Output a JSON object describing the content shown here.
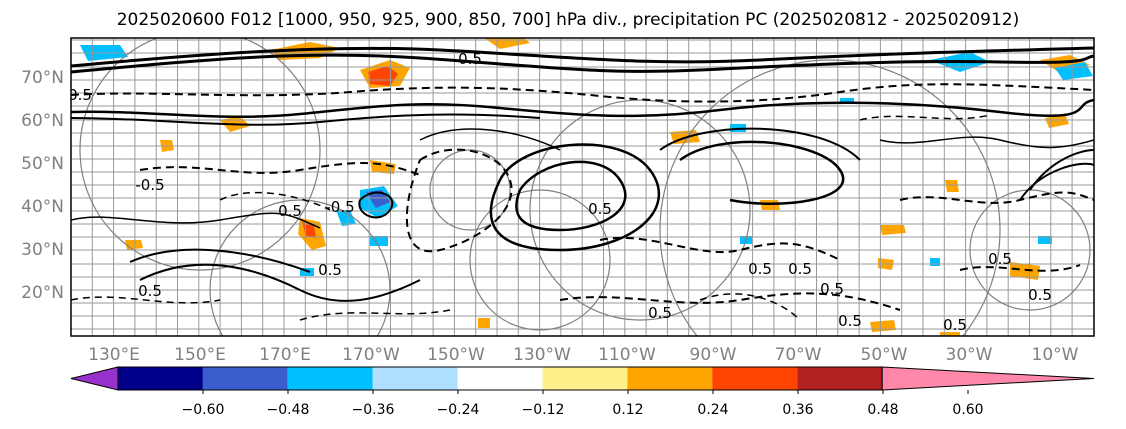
{
  "title": "2025020600 F012 [1000, 950, 925, 900, 850, 700] hPa div., precipitation PC (2025020812 - 2025020912)",
  "lat_labels": [
    "70°N",
    "60°N",
    "50°N",
    "40°N",
    "30°N",
    "20°N"
  ],
  "lon_labels": [
    "130°E",
    "150°E",
    "170°E",
    "170°W",
    "150°W",
    "130°W",
    "110°W",
    "90°W",
    "70°W",
    "50°W",
    "30°W",
    "10°W"
  ],
  "contour_labels": [
    "0.5",
    "0.5",
    "-0.5",
    "-0.5",
    "0.5",
    "0.5",
    "0.5",
    "0.5",
    "0.5",
    "0.5",
    "0.5",
    "0.5",
    "0.5",
    "0.5",
    "0.5",
    "0.5"
  ],
  "colorbar": {
    "colors": [
      "#9932cc",
      "#00008b",
      "#3a5fcd",
      "#00bfff",
      "#b0e0ff",
      "#ffffff",
      "#fff08c",
      "#ffa500",
      "#ff4500",
      "#b22222",
      "#ff88aa"
    ],
    "tick_labels": [
      "−0.60",
      "−0.48",
      "−0.36",
      "−0.24",
      "−0.12",
      "0.12",
      "0.24",
      "0.36",
      "0.48",
      "0.60"
    ]
  }
}
